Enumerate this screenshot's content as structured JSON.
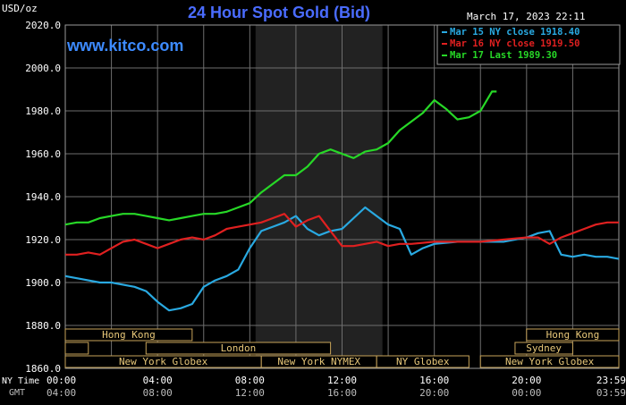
{
  "header": {
    "unit_label": "USD/oz",
    "title": "24 Hour Spot Gold (Bid)",
    "datetime": "March 17, 2023 22:11",
    "watermark": "www.kitco.com"
  },
  "legend": [
    {
      "text": "Mar 15 NY close 1918.40",
      "color": "#29a9e1"
    },
    {
      "text": "Mar 16 NY close 1919.50",
      "color": "#e02020"
    },
    {
      "text": "Mar 17 Last 1989.30",
      "color": "#27d827"
    }
  ],
  "time_labels": {
    "ny_row_label": "NY Time",
    "gmt_row_label": "GMT",
    "ny": [
      "00:00",
      "04:00",
      "08:00",
      "12:00",
      "16:00",
      "20:00",
      "23:59"
    ],
    "gmt": [
      "04:00",
      "08:00",
      "12:00",
      "16:00",
      "20:00",
      "00:00",
      "03:59"
    ]
  },
  "sessions": [
    {
      "label": "Hong Kong",
      "row": 0,
      "start": 0,
      "end": 5.5
    },
    {
      "label": "",
      "row": 1,
      "start": 0,
      "end": 1
    },
    {
      "label": "London",
      "row": 1,
      "start": 3.5,
      "end": 11.5
    },
    {
      "label": "New York Globex",
      "row": 2,
      "start": 0,
      "end": 8.5
    },
    {
      "label": "New York NYMEX",
      "row": 2,
      "start": 8.5,
      "end": 13.5
    },
    {
      "label": "NY Globex",
      "row": 2,
      "start": 13.5,
      "end": 17.5
    },
    {
      "label": "Hong Kong",
      "row": 0,
      "start": 20,
      "end": 24
    },
    {
      "label": "Sydney",
      "row": 1,
      "start": 19.5,
      "end": 22
    },
    {
      "label": "New York Globex",
      "row": 2,
      "start": 18,
      "end": 24
    }
  ],
  "chart_data": {
    "type": "line",
    "title": "24 Hour Spot Gold (Bid)",
    "ylabel": "USD/oz",
    "xlabel": "",
    "xlim": [
      0,
      24
    ],
    "ylim": [
      1860,
      2020
    ],
    "yticks": [
      "2020.0",
      "2000.0",
      "1980.0",
      "1960.0",
      "1940.0",
      "1920.0",
      "1900.0",
      "1880.0",
      "1860.0"
    ],
    "xticks": [
      0,
      4,
      8,
      12,
      16,
      20,
      24
    ],
    "shaded_region": [
      8.25,
      13.75
    ],
    "grid": true,
    "series": [
      {
        "name": "Mar 15 NY close 1918.40",
        "color": "#29a9e1",
        "x": [
          0,
          0.5,
          1,
          1.5,
          2,
          2.5,
          3,
          3.5,
          4,
          4.5,
          5,
          5.5,
          6,
          6.5,
          7,
          7.5,
          8,
          8.5,
          9,
          9.5,
          10,
          10.5,
          11,
          11.5,
          12,
          12.5,
          13,
          13.5,
          14,
          14.5,
          15,
          15.5,
          16,
          17,
          18,
          19,
          20,
          20.5,
          21,
          21.5,
          22,
          22.5,
          23,
          23.5,
          24
        ],
        "y": [
          1903,
          1902,
          1901,
          1900,
          1900,
          1899,
          1898,
          1896,
          1891,
          1887,
          1888,
          1890,
          1898,
          1901,
          1903,
          1906,
          1916,
          1924,
          1926,
          1928,
          1931,
          1925,
          1922,
          1924,
          1925,
          1930,
          1935,
          1931,
          1927,
          1925,
          1913,
          1916,
          1918,
          1919,
          1919,
          1919,
          1921,
          1923,
          1924,
          1913,
          1912,
          1913,
          1912,
          1912,
          1911
        ]
      },
      {
        "name": "Mar 16 NY close 1919.50",
        "color": "#e02020",
        "x": [
          0,
          0.5,
          1,
          1.5,
          2,
          2.5,
          3,
          3.5,
          4,
          4.5,
          5,
          5.5,
          6,
          6.5,
          7,
          7.5,
          8,
          8.5,
          9,
          9.5,
          10,
          10.5,
          11,
          11.5,
          12,
          12.5,
          13,
          13.5,
          14,
          14.5,
          15,
          16,
          17,
          18,
          19,
          20,
          20.5,
          21,
          21.5,
          22,
          22.5,
          23,
          23.5,
          24
        ],
        "y": [
          1913,
          1913,
          1914,
          1913,
          1916,
          1919,
          1920,
          1918,
          1916,
          1918,
          1920,
          1921,
          1920,
          1922,
          1925,
          1926,
          1927,
          1928,
          1930,
          1932,
          1926,
          1929,
          1931,
          1924,
          1917,
          1917,
          1918,
          1919,
          1917,
          1918,
          1918,
          1919,
          1919,
          1919,
          1920,
          1921,
          1921,
          1918,
          1921,
          1923,
          1925,
          1927,
          1928,
          1928
        ]
      },
      {
        "name": "Mar 17 Last 1989.30",
        "color": "#27d827",
        "x": [
          0,
          0.5,
          1,
          1.5,
          2,
          2.5,
          3,
          3.5,
          4,
          4.5,
          5,
          5.5,
          6,
          6.5,
          7,
          7.5,
          8,
          8.5,
          9,
          9.5,
          10,
          10.5,
          11,
          11.5,
          12,
          12.5,
          13,
          13.5,
          14,
          14.5,
          15,
          15.5,
          16,
          16.5,
          17,
          17.5,
          18,
          18.5,
          18.7
        ],
        "y": [
          1927,
          1928,
          1928,
          1930,
          1931,
          1932,
          1932,
          1931,
          1930,
          1929,
          1930,
          1931,
          1932,
          1932,
          1933,
          1935,
          1937,
          1942,
          1946,
          1950,
          1950,
          1954,
          1960,
          1962,
          1960,
          1958,
          1961,
          1962,
          1965,
          1971,
          1975,
          1979,
          1985,
          1981,
          1976,
          1977,
          1980,
          1989,
          1989
        ]
      }
    ]
  }
}
